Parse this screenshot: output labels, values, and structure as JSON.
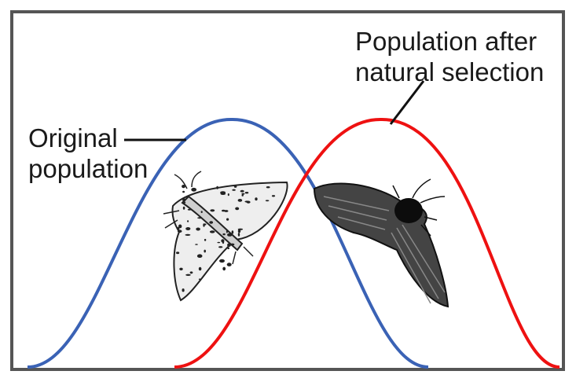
{
  "diagram": {
    "labels": {
      "original_line1": "Original",
      "original_line2": "population",
      "after_line1": "Population after",
      "after_line2": "natural selection"
    },
    "curves": [
      {
        "label_ref": "original",
        "color": "#3a62b5"
      },
      {
        "label_ref": "after",
        "color": "#ee1111"
      }
    ],
    "frame_color": "#555555",
    "light_moth": {
      "body_color": "#eeeeee",
      "spot_color": "#222222"
    },
    "dark_moth": {
      "body_color": "#444444",
      "vein_color": "#888888"
    }
  }
}
